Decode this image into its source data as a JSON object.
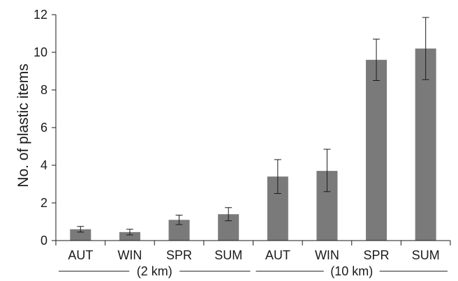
{
  "chart_data": {
    "type": "bar",
    "ylabel": "No. of plastic items",
    "xlabel": "",
    "ylim": [
      0,
      12
    ],
    "yticks": [
      0,
      2,
      4,
      6,
      8,
      10,
      12
    ],
    "grid": false,
    "bar_color": "#7a7a7a",
    "categories": [
      "AUT",
      "WIN",
      "SPR",
      "SUM",
      "AUT",
      "WIN",
      "SPR",
      "SUM"
    ],
    "values": [
      0.6,
      0.45,
      1.1,
      1.4,
      3.4,
      3.7,
      9.6,
      10.2
    ],
    "error_low": [
      0.45,
      0.3,
      0.85,
      1.05,
      2.5,
      2.6,
      8.5,
      8.55
    ],
    "error_high": [
      0.75,
      0.6,
      1.35,
      1.75,
      4.3,
      4.85,
      10.7,
      11.85
    ],
    "groups": [
      {
        "label": "(2 km)",
        "members": [
          0,
          1,
          2,
          3
        ]
      },
      {
        "label": "(10 km)",
        "members": [
          4,
          5,
          6,
          7
        ]
      }
    ]
  }
}
